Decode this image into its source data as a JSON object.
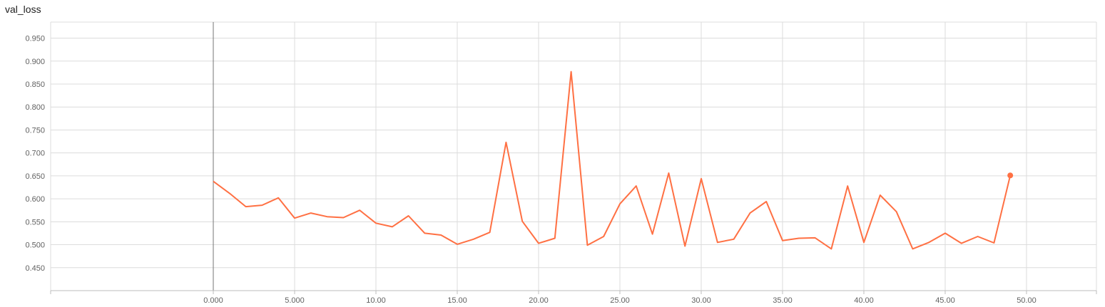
{
  "chart_data": {
    "type": "line",
    "title": "val_loss",
    "xlabel": "",
    "ylabel": "",
    "xlim": [
      -10,
      54.3
    ],
    "ylim": [
      0.4,
      0.985
    ],
    "x_ticks": [
      0,
      5,
      10,
      15,
      20,
      25,
      30,
      35,
      40,
      45,
      50
    ],
    "x_tick_labels": [
      "0.000",
      "5.000",
      "10.00",
      "15.00",
      "20.00",
      "25.00",
      "30.00",
      "35.00",
      "40.00",
      "45.00",
      "50.00"
    ],
    "y_ticks": [
      0.45,
      0.5,
      0.55,
      0.6,
      0.65,
      0.7,
      0.75,
      0.8,
      0.85,
      0.9,
      0.95
    ],
    "y_tick_labels": [
      "0.450",
      "0.500",
      "0.550",
      "0.600",
      "0.650",
      "0.700",
      "0.750",
      "0.800",
      "0.850",
      "0.900",
      "0.950"
    ],
    "grid": true,
    "series": [
      {
        "color": "#ff7043",
        "x": [
          0,
          1,
          2,
          3,
          4,
          5,
          6,
          7,
          8,
          9,
          10,
          11,
          12,
          13,
          14,
          15,
          16,
          17,
          18,
          19,
          20,
          21,
          22,
          23,
          24,
          25,
          26,
          27,
          28,
          29,
          30,
          31,
          32,
          33,
          34,
          35,
          36,
          37,
          38,
          39,
          40,
          41,
          42,
          43,
          44,
          45,
          46,
          47,
          48,
          49
        ],
        "values": [
          0.638,
          0.612,
          0.583,
          0.586,
          0.602,
          0.558,
          0.569,
          0.561,
          0.559,
          0.575,
          0.547,
          0.539,
          0.563,
          0.525,
          0.521,
          0.501,
          0.512,
          0.527,
          0.723,
          0.551,
          0.503,
          0.514,
          0.877,
          0.499,
          0.518,
          0.589,
          0.628,
          0.523,
          0.656,
          0.497,
          0.644,
          0.505,
          0.512,
          0.569,
          0.594,
          0.509,
          0.514,
          0.515,
          0.491,
          0.628,
          0.505,
          0.608,
          0.572,
          0.491,
          0.505,
          0.525,
          0.503,
          0.518,
          0.504,
          0.651
        ]
      }
    ]
  }
}
